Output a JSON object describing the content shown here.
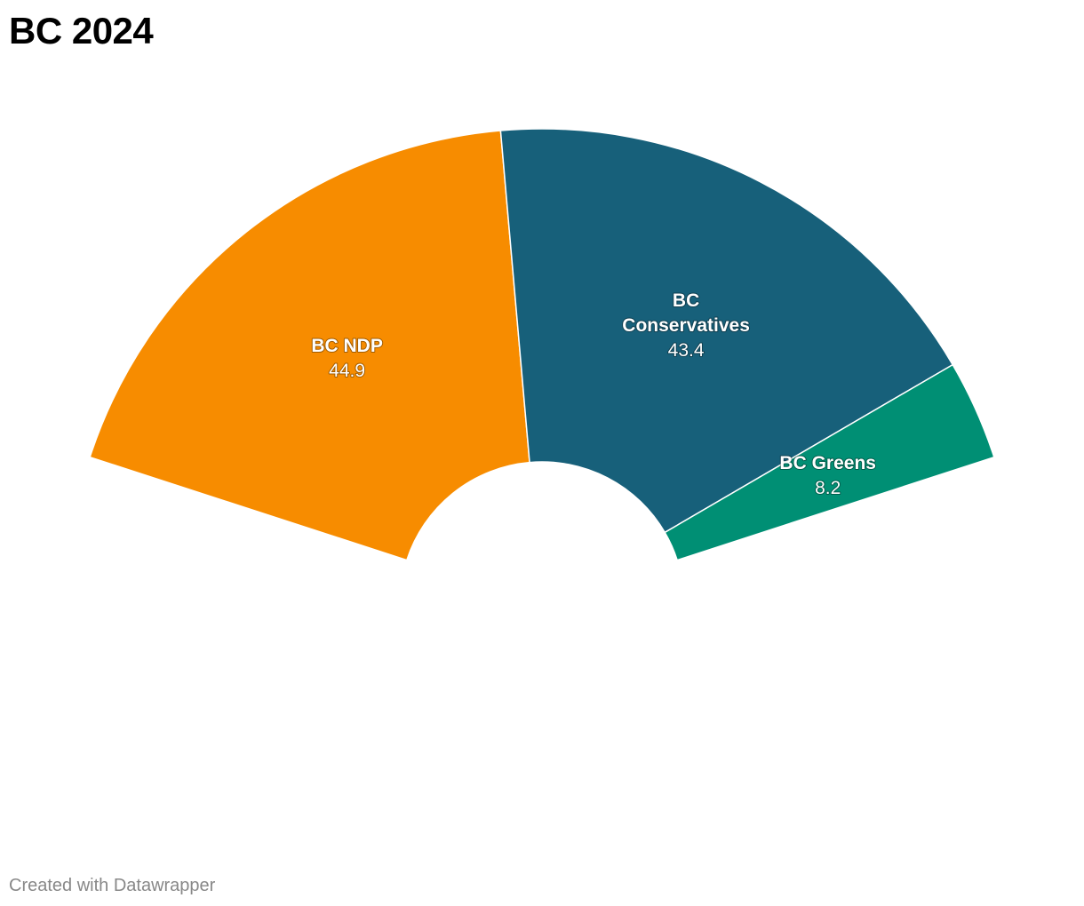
{
  "chart_data": {
    "type": "pie",
    "subtype": "semicircle-donut",
    "title": "BC 2024",
    "slices": [
      {
        "name_lines": [
          "BC NDP"
        ],
        "value": 44.9,
        "value_label": "44.9",
        "color": "#f78c00"
      },
      {
        "name_lines": [
          "BC",
          "Conservatives"
        ],
        "value": 43.4,
        "value_label": "43.4",
        "color": "#17607a"
      },
      {
        "name_lines": [
          "BC Greens"
        ],
        "value": 8.2,
        "value_label": "8.2",
        "color": "#008f74"
      }
    ]
  },
  "footer": {
    "credit": "Created with Datawrapper"
  }
}
